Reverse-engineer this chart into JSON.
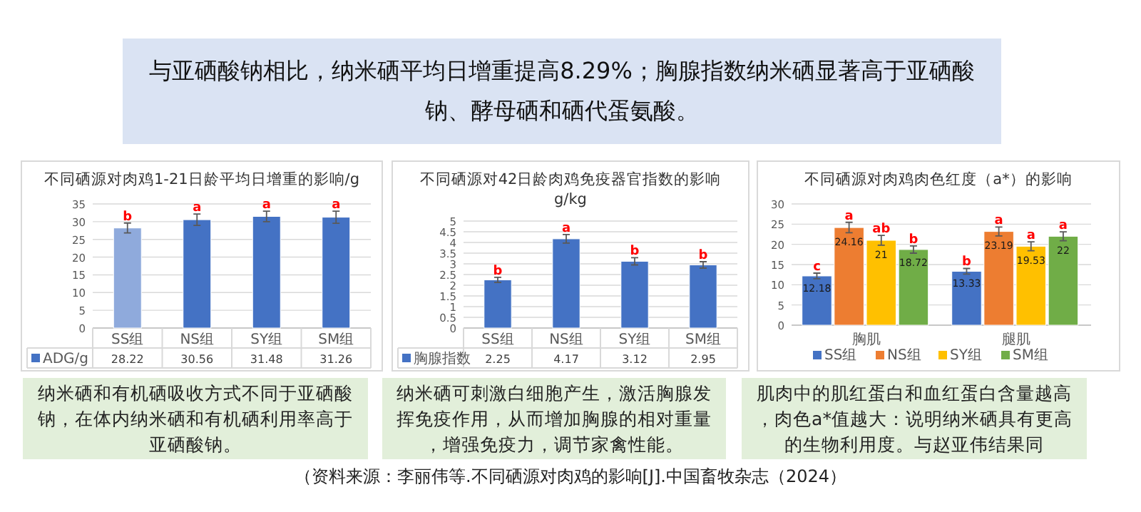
{
  "chart_data": [
    {
      "type": "other",
      "annotations": [
        "与亚硒酸钠相比，纳米硒平均日增重提高8.29%；胸腺指数纳米硒显著高于亚硒酸钠、酵母硒和硒代蛋氨酸。",
        "（资料来源：李丽伟等.不同硒源对肉鸡的影响[J].中国畜牧杂志（2024）"
      ]
    },
    {
      "type": "bar",
      "title": "不同硒源对肉鸡1-21日龄平均日增重的影响/g",
      "categories": [
        "SS组",
        "NS组",
        "SY组",
        "SM组"
      ],
      "series": [
        {
          "name": "ADG/g",
          "color": "#4472c4",
          "colors": [
            "#8faadc",
            "#4472c4",
            "#4472c4",
            "#4472c4"
          ],
          "values": [
            28.22,
            30.56,
            31.48,
            31.26
          ],
          "errors": [
            1.4,
            1.6,
            1.5,
            1.7
          ]
        }
      ],
      "ylim": [
        0,
        35
      ],
      "yticks": [
        0,
        5,
        10,
        15,
        20,
        25,
        30,
        35
      ],
      "grid": "y",
      "legend": "bottom",
      "data_labels": true,
      "annotations": [
        {
          "text": "b",
          "x": "SS组",
          "y": 29.6
        },
        {
          "text": "a",
          "x": "NS组",
          "y": 32.2
        },
        {
          "text": "a",
          "x": "SY组",
          "y": 33.0
        },
        {
          "text": "a",
          "x": "SM组",
          "y": 33.0
        },
        "纳米硒和有机硒吸收方式不同于亚硒酸钠，在体内纳米硒和有机硒利用率高于亚硒酸钠。"
      ]
    },
    {
      "type": "bar",
      "title": "不同硒源对42日龄肉鸡免疫器官指数的影响",
      "subtitle": "g/kg",
      "categories": [
        "SS组",
        "NS组",
        "SY组",
        "SM组"
      ],
      "series": [
        {
          "name": "胸腺指数",
          "color": "#4472c4",
          "values": [
            2.25,
            4.17,
            3.12,
            2.95
          ],
          "errors": [
            0.12,
            0.2,
            0.17,
            0.15
          ]
        }
      ],
      "ylim": [
        0,
        5
      ],
      "yticks": [
        0,
        0.5,
        1,
        1.5,
        2,
        2.5,
        3,
        3.5,
        4,
        4.5,
        5
      ],
      "grid": "y",
      "legend": "bottom",
      "data_labels": true,
      "annotations": [
        {
          "text": "b",
          "x": "SS组",
          "y": 2.37
        },
        {
          "text": "a",
          "x": "NS组",
          "y": 4.37
        },
        {
          "text": "b",
          "x": "SY组",
          "y": 3.29
        },
        {
          "text": "b",
          "x": "SM组",
          "y": 3.1
        },
        "纳米硒可刺激白细胞产生，激活胸腺发挥免疫作用，从而增加胸腺的相对重量，增强免疫力，调节家禽性能。"
      ]
    },
    {
      "type": "bar",
      "title": "不同硒源对肉鸡肉色红度（a*）的影响",
      "categories": [
        "胸肌",
        "腿肌"
      ],
      "series": [
        {
          "name": "SS组",
          "color": "#4472c4",
          "values": [
            12.18,
            13.33
          ],
          "errors": [
            0.7,
            0.7
          ]
        },
        {
          "name": "NS组",
          "color": "#ed7d31",
          "values": [
            24.16,
            23.19
          ],
          "errors": [
            1.3,
            1.1
          ]
        },
        {
          "name": "SY组",
          "color": "#ffc000",
          "values": [
            21,
            19.53
          ],
          "errors": [
            1.2,
            1.1
          ]
        },
        {
          "name": "SM组",
          "color": "#70ad47",
          "values": [
            18.72,
            22
          ],
          "errors": [
            0.9,
            1.1
          ]
        }
      ],
      "ylim": [
        0,
        30
      ],
      "yticks": [
        0,
        5,
        10,
        15,
        20,
        25,
        30
      ],
      "grid": "y",
      "legend": "bottom",
      "data_labels": true,
      "annotations": [
        "c",
        "a",
        "ab",
        "b",
        "b",
        "a",
        "a",
        "a",
        "肌肉中的肌红蛋白和血红蛋白含量越高，肉色a*值越大：说明纳米硒具有更高的生物利用度。与赵亚伟结果同"
      ]
    }
  ]
}
